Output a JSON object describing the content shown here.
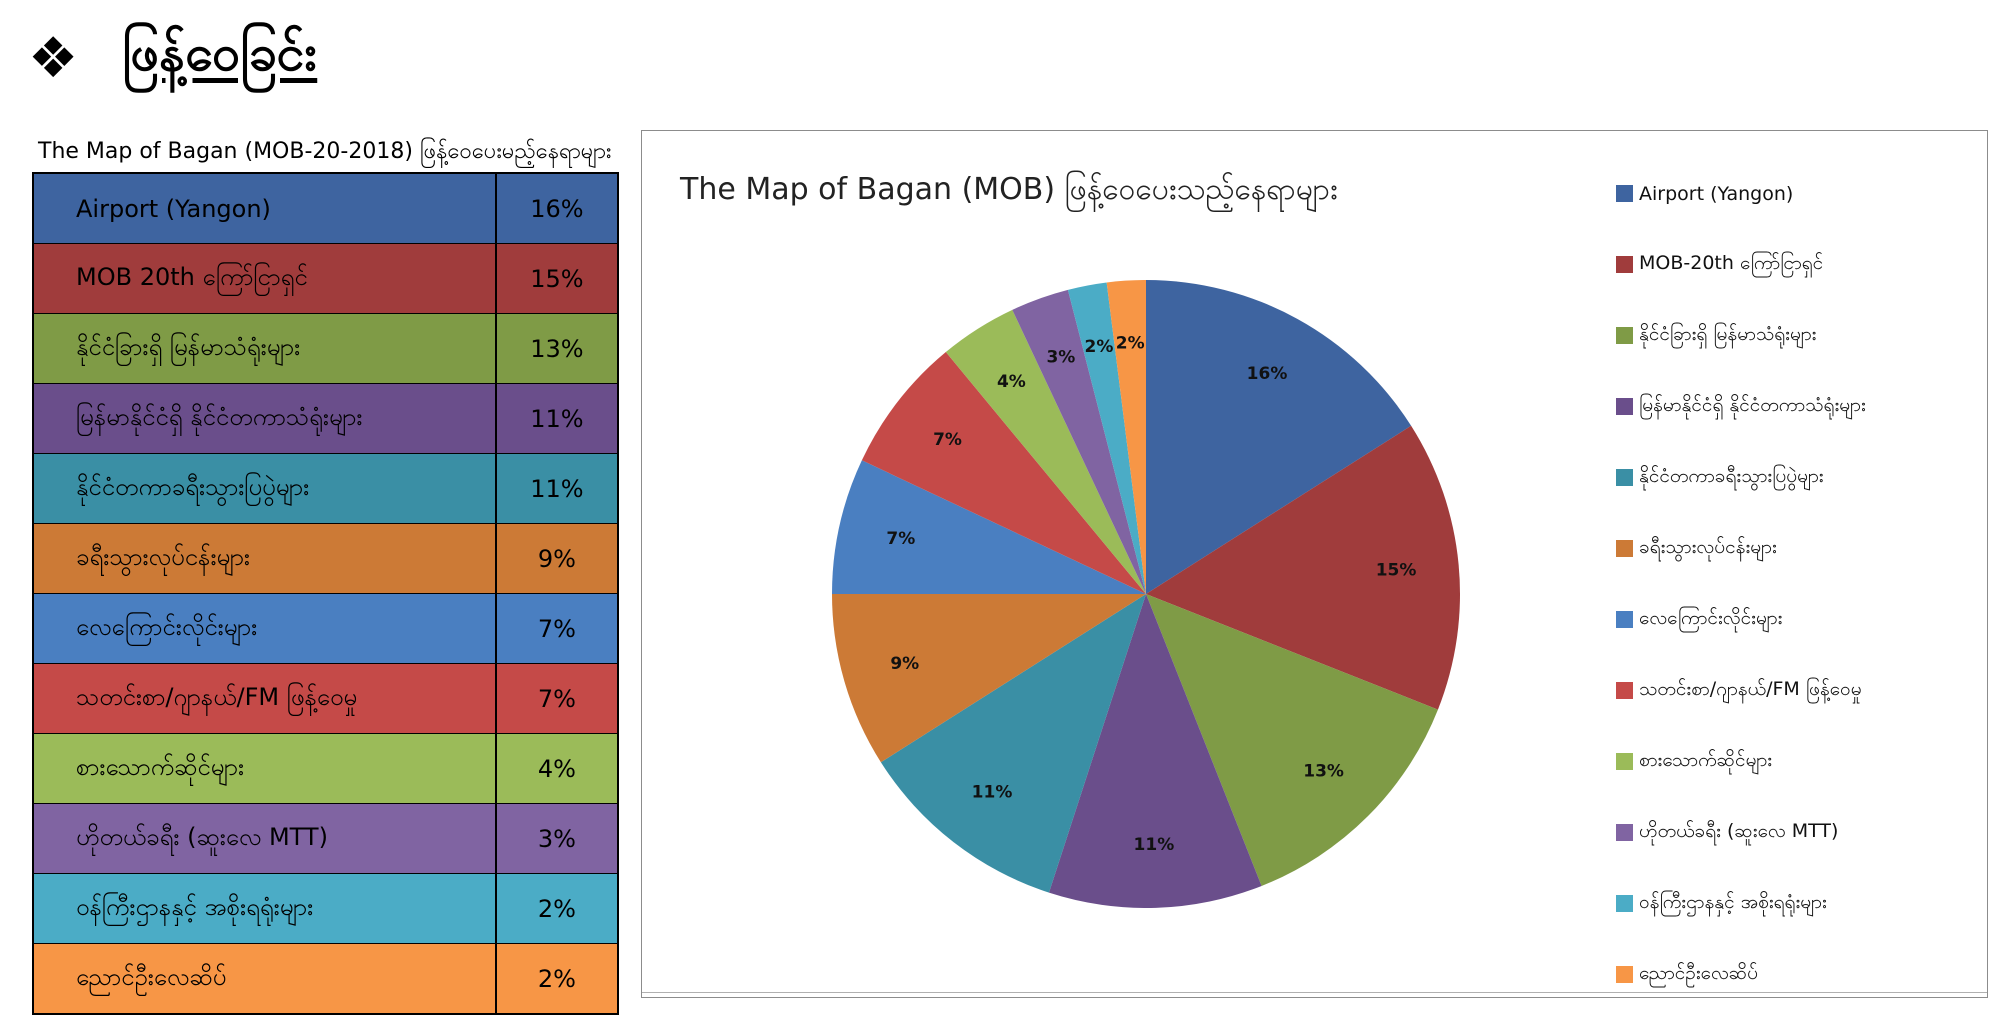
{
  "heading": {
    "icon": "❖",
    "text": "ဖြန့်ဝေခြင်း"
  },
  "table": {
    "caption": "The Map of Bagan (MOB-20-2018) ဖြန့်ဝေပေးမည့်နေရာများ",
    "rows": [
      {
        "label": "Airport (Yangon)",
        "value": "16%",
        "color": "#3e64a0"
      },
      {
        "label": "MOB 20th ကြော်ငြာရှင်",
        "value": "15%",
        "color": "#a03c3c"
      },
      {
        "label": "နိုင်ငံခြားရှိ မြန်မာသံရုံးများ",
        "value": "13%",
        "color": "#7f9b46"
      },
      {
        "label": "မြန်မာနိုင်ငံရှိ နိုင်ငံတကာသံရုံးများ",
        "value": "11%",
        "color": "#6a4e8b"
      },
      {
        "label": "နိုင်ငံတကာခရီးသွားပြပွဲများ",
        "value": "11%",
        "color": "#3a8fa5"
      },
      {
        "label": "ခရီးသွားလုပ်ငန်းများ",
        "value": "9%",
        "color": "#cc7a36"
      },
      {
        "label": "လေကြောင်းလိုင်းများ",
        "value": "7%",
        "color": "#4a7fc1"
      },
      {
        "label": "သတင်းစာ/ဂျာနယ်/FM ဖြန့်ဝေမှု",
        "value": "7%",
        "color": "#c54a48"
      },
      {
        "label": "စားသောက်ဆိုင်များ",
        "value": "4%",
        "color": "#9bbb59"
      },
      {
        "label": "ဟိုတယ်ခရီး (ဆူးလေ MTT)",
        "value": "3%",
        "color": "#8064a2"
      },
      {
        "label": "ဝန်ကြီးဌာနနှင့် အစိုးရရုံးများ",
        "value": "2%",
        "color": "#4bacc6"
      },
      {
        "label": "ညောင်ဦးလေဆိပ်",
        "value": "2%",
        "color": "#f79646"
      }
    ]
  },
  "chart_data": {
    "type": "pie",
    "title": "The Map of Bagan (MOB) ဖြန့်ဝေပေးသည့်နေရာများ",
    "legend_position": "right",
    "categories": [
      "Airport (Yangon)",
      "MOB-20th ကြော်ငြာရှင်",
      "နိုင်ငံခြားရှိ မြန်မာသံရုံးများ",
      "မြန်မာနိုင်ငံရှိ နိုင်ငံတကာသံရုံးများ",
      "နိုင်ငံတကာခရီးသွားပြပွဲများ",
      "ခရီးသွားလုပ်ငန်းများ",
      "လေကြောင်းလိုင်းများ",
      "သတင်းစာ/ဂျာနယ်/FM ဖြန့်ဝေမှု",
      "စားသောက်ဆိုင်များ",
      "ဟိုတယ်ခရီး (ဆူးလေ MTT)",
      "ဝန်ကြီးဌာနနှင့် အစိုးရရုံးများ",
      "ညောင်ဦးလေဆိပ်"
    ],
    "values": [
      16,
      15,
      13,
      11,
      11,
      9,
      7,
      7,
      4,
      3,
      2,
      2
    ],
    "data_labels": [
      "16%",
      "15%",
      "13%",
      "11%",
      "11%",
      "9%",
      "7%",
      "7%",
      "4%",
      "3%",
      "2%",
      "2%"
    ],
    "colors": [
      "#3e64a0",
      "#a03c3c",
      "#7f9b46",
      "#6a4e8b",
      "#3a8fa5",
      "#cc7a36",
      "#4a7fc1",
      "#c54a48",
      "#9bbb59",
      "#8064a2",
      "#4bacc6",
      "#f79646"
    ]
  }
}
